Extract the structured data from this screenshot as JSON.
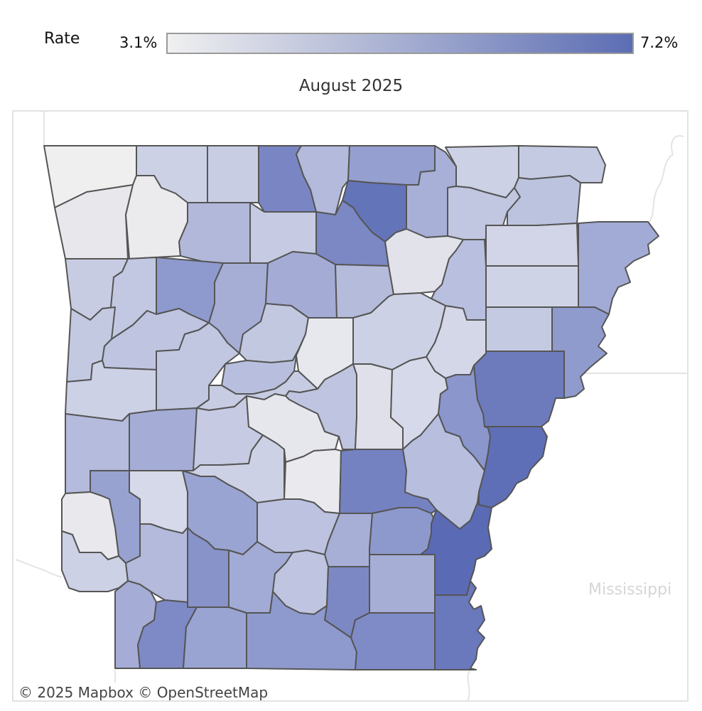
{
  "legend": {
    "label": "Rate",
    "min_label": "3.1%",
    "max_label": "7.2%",
    "min_value": 3.1,
    "max_value": 7.2,
    "color_low": "#f0f0f0",
    "color_high": "#5c6db3"
  },
  "map": {
    "title": "August 2025",
    "neighbor_label": "Mississippi",
    "attribution": "© 2025 Mapbox  © OpenStreetMap",
    "border_color": "#555555",
    "background_state_border": "#e4e4e4"
  }
}
